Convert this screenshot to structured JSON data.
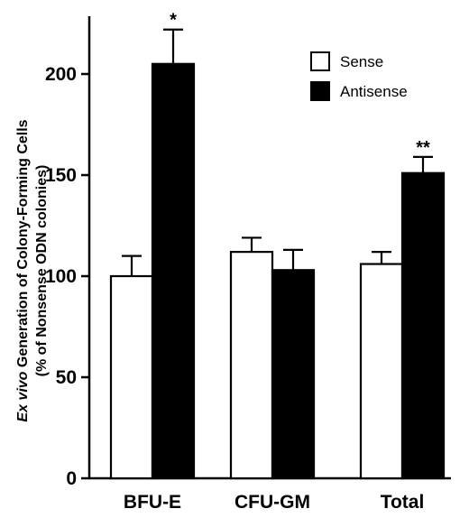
{
  "chart_data": {
    "type": "bar",
    "categories": [
      "BFU-E",
      "CFU-GM",
      "Total"
    ],
    "series": [
      {
        "name": "Sense",
        "values": [
          100,
          112,
          106
        ],
        "errors": [
          10,
          7,
          6
        ],
        "color": "#ffffff"
      },
      {
        "name": "Antisense",
        "values": [
          205,
          103,
          151
        ],
        "errors": [
          17,
          10,
          8
        ],
        "color": "#000000"
      }
    ],
    "significance": [
      "*",
      "",
      "**"
    ],
    "ylabel_italic": "Ex vivo",
    "ylabel_main": " Generation of Colony-Forming Cells",
    "ylabel_sub": "(% of Nonsense ODN colonies)",
    "ylim": [
      0,
      230
    ],
    "yticks": [
      0,
      50,
      100,
      150,
      200
    ],
    "legend_position": "top-right",
    "grid": false
  }
}
